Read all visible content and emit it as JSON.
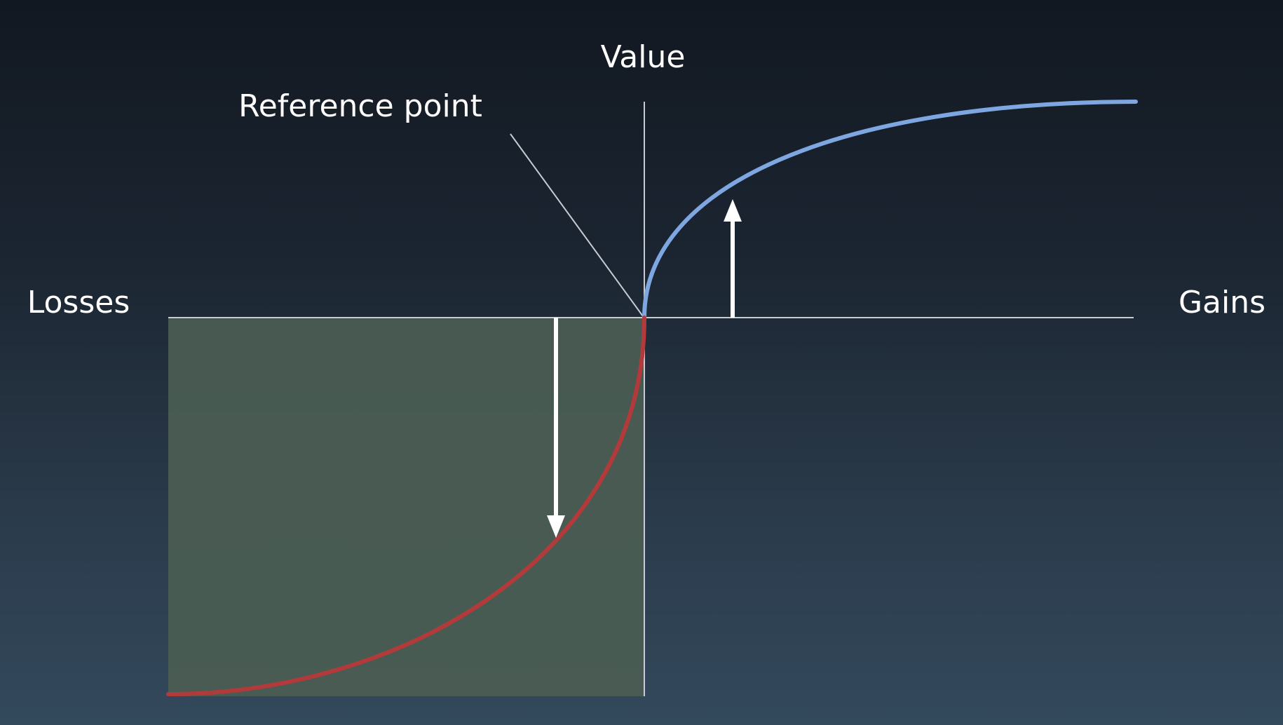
{
  "labels": {
    "value": "Value",
    "reference_point": "Reference point",
    "losses": "Losses",
    "gains": "Gains"
  },
  "colors": {
    "gains_curve": "#7ea6e0",
    "losses_curve": "#b33a3a",
    "loss_area": "#4b5d52",
    "axis": "#c8ccd2",
    "arrow": "#ffffff"
  },
  "icons": {
    "gain_arrow": "arrow-up-icon",
    "loss_arrow": "arrow-down-icon"
  }
}
